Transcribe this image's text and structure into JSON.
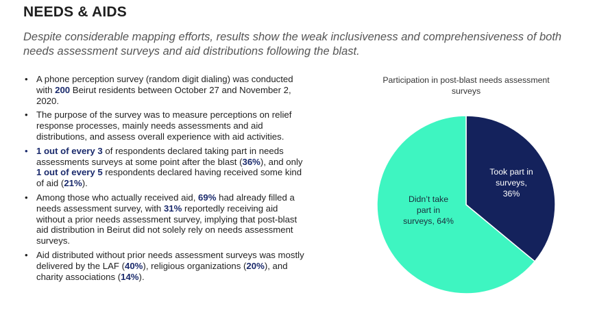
{
  "header": {
    "title": "NEEDS & AIDS",
    "subtitle": "Despite considerable mapping efforts, results show the weak inclusiveness and comprehensiveness of both needs assessment surveys and aid distributions following the blast."
  },
  "bullets": {
    "b1": {
      "p1": "A phone perception survey (random digit dialing) was conducted with ",
      "h1": "200",
      "p2": " Beirut residents between October 27 and November 2, 2020."
    },
    "b2": {
      "p1": "The purpose of the survey was to measure perceptions on relief response processes, mainly needs assessments and aid distributions, and assess overall experience with aid activities."
    },
    "b3": {
      "h1": "1 out of every 3",
      "p1": " of respondents declared taking part in needs assessments surveys at some point after the blast (",
      "h2": "36%",
      "p2": "), and only ",
      "h3": "1 out of every 5",
      "p3": " respondents declared having received some kind of aid (",
      "h4": "21%",
      "p4": ")."
    },
    "b4": {
      "p1": "Among those who actually received aid, ",
      "h1": "69%",
      "p2": " had already filled a needs assessment survey, with ",
      "h2": "31%",
      "p3": " reportedly receiving aid without a prior needs assessment survey, implying that post-blast aid distribution in Beirut did not solely rely on needs assessment surveys."
    },
    "b5": {
      "p1": "Aid distributed without prior needs assessment surveys was mostly delivered by the LAF (",
      "h1": "40%",
      "p2": "), religious organizations (",
      "h2": "20%",
      "p3": "), and charity associations (",
      "h3": "14%",
      "p4": ")."
    }
  },
  "chart_data": {
    "type": "pie",
    "title": "Participation in post-blast needs assessment surveys",
    "slices": [
      {
        "label": "Took part in surveys",
        "value": 36,
        "label_line1": "Took part in",
        "label_line2": "surveys,",
        "label_line3": "36%",
        "color": "#14225c"
      },
      {
        "label": "Didn't take part in surveys",
        "value": 64,
        "label_line1": "Didn’t take",
        "label_line2": "part in",
        "label_line3": "surveys, 64%",
        "color": "#3ef5c1"
      }
    ]
  }
}
